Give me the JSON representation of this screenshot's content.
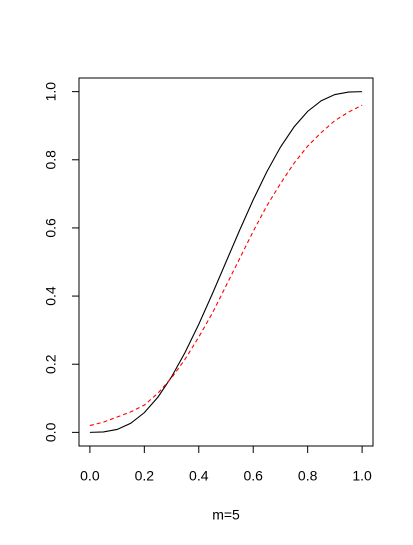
{
  "chart_data": {
    "type": "line",
    "xlabel": "m=5",
    "x": [
      0,
      0.05,
      0.1,
      0.15,
      0.2,
      0.25,
      0.3,
      0.35,
      0.4,
      0.45,
      0.5,
      0.55,
      0.6,
      0.65,
      0.7,
      0.75,
      0.8,
      0.85,
      0.9,
      0.95,
      1
    ],
    "series": [
      {
        "color": "#000000",
        "dash": "solid",
        "values": [
          0,
          0.0012,
          0.0086,
          0.0266,
          0.0579,
          0.1035,
          0.163,
          0.2352,
          0.3174,
          0.4069,
          0.5,
          0.5931,
          0.6826,
          0.7648,
          0.837,
          0.8965,
          0.9421,
          0.9734,
          0.9914,
          0.9988,
          1
        ]
      },
      {
        "color": "#ff0000",
        "dash": "dashed",
        "values": [
          0.02,
          0.03,
          0.045,
          0.06,
          0.08,
          0.115,
          0.16,
          0.215,
          0.28,
          0.35,
          0.43,
          0.51,
          0.59,
          0.665,
          0.73,
          0.79,
          0.84,
          0.88,
          0.915,
          0.94,
          0.96
        ]
      }
    ],
    "xlim": [
      -0.04,
      1.04
    ],
    "ylim": [
      -0.04,
      1.04
    ],
    "xticks": [
      {
        "value": 0,
        "label": "0.0"
      },
      {
        "value": 0.2,
        "label": "0.2"
      },
      {
        "value": 0.4,
        "label": "0.4"
      },
      {
        "value": 0.6,
        "label": "0.6"
      },
      {
        "value": 0.8,
        "label": "0.8"
      },
      {
        "value": 1,
        "label": "1.0"
      }
    ],
    "yticks": [
      {
        "value": 0,
        "label": "0.0"
      },
      {
        "value": 0.2,
        "label": "0.2"
      },
      {
        "value": 0.4,
        "label": "0.4"
      },
      {
        "value": 0.6,
        "label": "0.6"
      },
      {
        "value": 0.8,
        "label": "0.8"
      },
      {
        "value": 1,
        "label": "1.0"
      }
    ]
  }
}
